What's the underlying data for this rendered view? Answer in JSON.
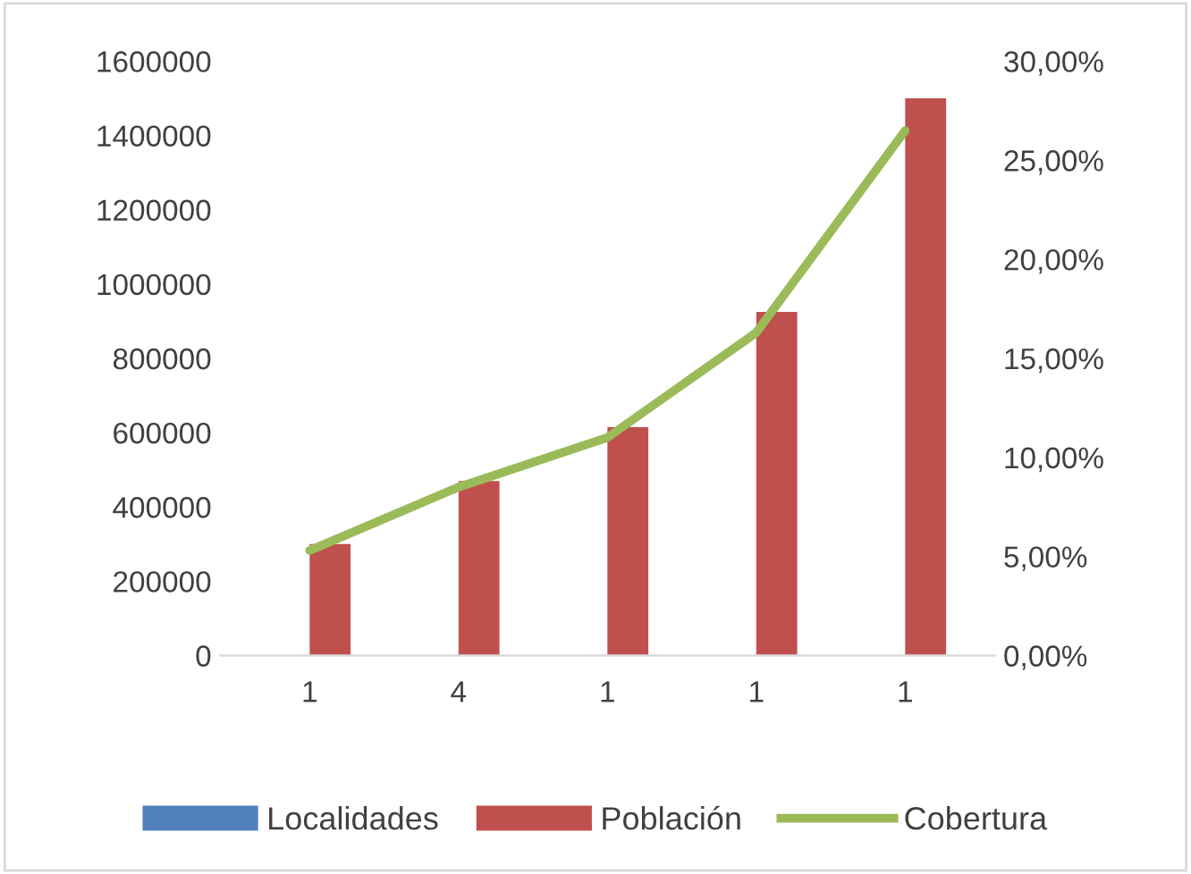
{
  "chart_data": {
    "type": "bar",
    "categories": [
      "1",
      "4",
      "1",
      "1",
      "1"
    ],
    "series": [
      {
        "name": "Localidades",
        "color": "#4f81bd",
        "values": [
          null,
          null,
          null,
          null,
          null
        ]
      },
      {
        "name": "Población",
        "color": "#c0504d",
        "values": [
          300000,
          470000,
          615000,
          925000,
          1500000
        ]
      },
      {
        "name": "Cobertura",
        "color": "#9bbb59",
        "type": "line",
        "axis": "y2",
        "values": [
          5.3,
          8.5,
          11.0,
          16.3,
          26.5
        ]
      }
    ],
    "ylim": [
      0,
      1600000
    ],
    "yticks": [
      0,
      200000,
      400000,
      600000,
      800000,
      1000000,
      1200000,
      1400000,
      1600000
    ],
    "y2lim": [
      0,
      30
    ],
    "y2ticks": [
      {
        "value": 0,
        "label": "0,00%"
      },
      {
        "value": 5,
        "label": "5,00%"
      },
      {
        "value": 10,
        "label": "10,00%"
      },
      {
        "value": 15,
        "label": "15,00%"
      },
      {
        "value": 20,
        "label": "20,00%"
      },
      {
        "value": 25,
        "label": "25,00%"
      },
      {
        "value": 30,
        "label": "30,00%"
      }
    ],
    "grid": false,
    "legend": "bottom",
    "marker": "none",
    "line_style": "solid"
  }
}
